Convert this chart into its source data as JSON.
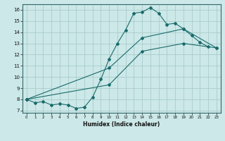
{
  "xlabel": "Humidex (Indice chaleur)",
  "bg_color": "#cce8e8",
  "grid_color": "#aacccc",
  "line_color": "#1a6b6b",
  "xlim": [
    -0.5,
    23.5
  ],
  "ylim": [
    6.8,
    16.5
  ],
  "yticks": [
    7,
    8,
    9,
    10,
    11,
    12,
    13,
    14,
    15,
    16
  ],
  "xticks": [
    0,
    1,
    2,
    3,
    4,
    5,
    6,
    7,
    8,
    9,
    10,
    11,
    12,
    13,
    14,
    15,
    16,
    17,
    18,
    19,
    20,
    21,
    22,
    23
  ],
  "line1_x": [
    0,
    1,
    2,
    3,
    4,
    5,
    6,
    7,
    8,
    9,
    10,
    11,
    12,
    13,
    14,
    15,
    16,
    17,
    18,
    19,
    20,
    21,
    22
  ],
  "line1_y": [
    8.0,
    7.7,
    7.8,
    7.5,
    7.6,
    7.5,
    7.2,
    7.3,
    8.2,
    9.8,
    11.6,
    13.0,
    14.2,
    15.7,
    15.8,
    16.2,
    15.7,
    14.7,
    14.8,
    14.3,
    13.7,
    13.1,
    12.7
  ],
  "line2_x": [
    0,
    10,
    14,
    19,
    23
  ],
  "line2_y": [
    8.0,
    10.8,
    13.5,
    14.3,
    12.6
  ],
  "line3_x": [
    0,
    10,
    14,
    19,
    23
  ],
  "line3_y": [
    8.0,
    9.3,
    12.3,
    13.0,
    12.6
  ]
}
